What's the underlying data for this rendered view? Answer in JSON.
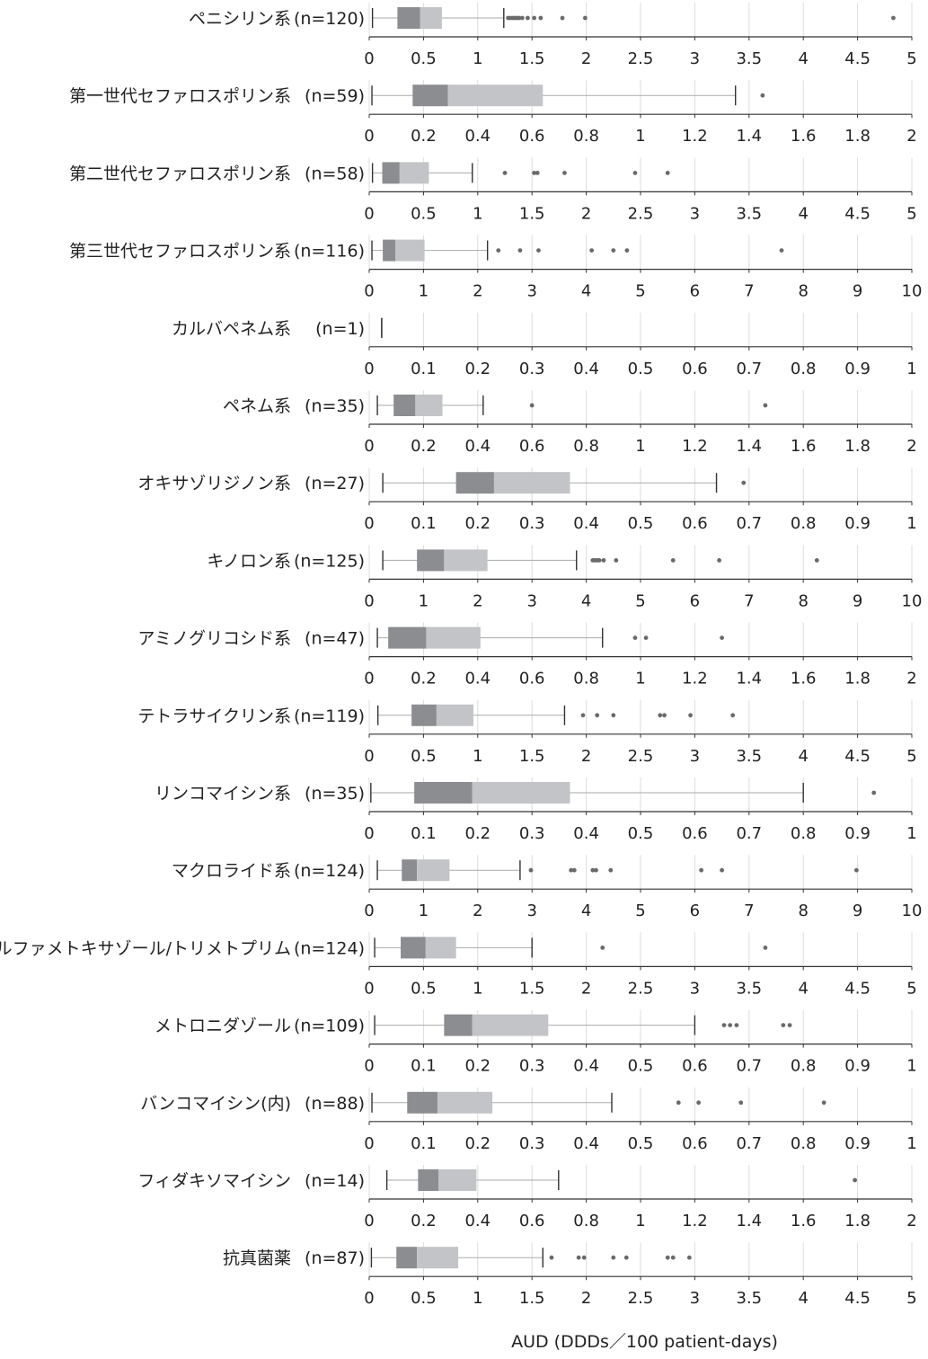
{
  "chart_data": {
    "type": "boxplot",
    "xlabel": "AUD (DDDs／100 patient-days)",
    "grid": true,
    "panels": [
      {
        "label": "ペニシリン系",
        "n": "(n=120)",
        "xlim": [
          0,
          5
        ],
        "ticks": [
          0,
          0.5,
          1,
          1.5,
          2,
          2.5,
          3,
          3.5,
          4,
          4.5,
          5
        ],
        "tick_labels": [
          "0",
          "0.5",
          "1",
          "1.5",
          "2",
          "2.5",
          "3",
          "3.5",
          "4",
          "4.5",
          "5"
        ],
        "min": 0.03,
        "q1": 0.26,
        "median": 0.47,
        "q3": 0.67,
        "max": 1.24,
        "outliers": [
          1.28,
          1.3,
          1.32,
          1.34,
          1.36,
          1.38,
          1.41,
          1.46,
          1.52,
          1.58,
          1.78,
          1.99,
          4.83
        ]
      },
      {
        "label": "第一世代セファロスポリン系",
        "n": "(n=59)",
        "xlim": [
          0,
          2
        ],
        "ticks": [
          0,
          0.2,
          0.4,
          0.6,
          0.8,
          1,
          1.2,
          1.4,
          1.6,
          1.8,
          2
        ],
        "tick_labels": [
          "0",
          "0.2",
          "0.4",
          "0.6",
          "0.8",
          "1",
          "1.2",
          "1.4",
          "1.6",
          "1.8",
          "2"
        ],
        "min": 0.01,
        "q1": 0.16,
        "median": 0.29,
        "q3": 0.64,
        "max": 1.35,
        "outliers": [
          1.45
        ]
      },
      {
        "label": "第二世代セファロスポリン系",
        "n": "(n=58)",
        "xlim": [
          0,
          5
        ],
        "ticks": [
          0,
          0.5,
          1,
          1.5,
          2,
          2.5,
          3,
          3.5,
          4,
          4.5,
          5
        ],
        "tick_labels": [
          "0",
          "0.5",
          "1",
          "1.5",
          "2",
          "2.5",
          "3",
          "3.5",
          "4",
          "4.5",
          "5"
        ],
        "min": 0.03,
        "q1": 0.12,
        "median": 0.28,
        "q3": 0.55,
        "max": 0.95,
        "outliers": [
          1.25,
          1.52,
          1.55,
          1.8,
          2.45,
          2.75
        ]
      },
      {
        "label": "第三世代セファロスポリン系",
        "n": "(n=116)",
        "xlim": [
          0,
          10
        ],
        "ticks": [
          0,
          1,
          2,
          3,
          4,
          5,
          6,
          7,
          8,
          9,
          10
        ],
        "tick_labels": [
          "0",
          "1",
          "2",
          "3",
          "4",
          "5",
          "6",
          "7",
          "8",
          "9",
          "10"
        ],
        "min": 0.05,
        "q1": 0.25,
        "median": 0.48,
        "q3": 1.02,
        "max": 2.18,
        "outliers": [
          2.38,
          2.78,
          3.12,
          4.1,
          4.5,
          4.75,
          7.6
        ]
      },
      {
        "label": "カルバペネム系",
        "n": "(n=1)",
        "xlim": [
          0,
          1
        ],
        "ticks": [
          0,
          0.1,
          0.2,
          0.3,
          0.4,
          0.5,
          0.6,
          0.7,
          0.8,
          0.9,
          1
        ],
        "tick_labels": [
          "0",
          "0.1",
          "0.2",
          "0.3",
          "0.4",
          "0.5",
          "0.6",
          "0.7",
          "0.8",
          "0.9",
          "1"
        ],
        "min": 0.023,
        "q1": 0.023,
        "median": 0.023,
        "q3": 0.023,
        "max": 0.023,
        "outliers": []
      },
      {
        "label": "ペネム系",
        "n": "(n=35)",
        "xlim": [
          0,
          2
        ],
        "ticks": [
          0,
          0.2,
          0.4,
          0.6,
          0.8,
          1,
          1.2,
          1.4,
          1.6,
          1.8,
          2
        ],
        "tick_labels": [
          "0",
          "0.2",
          "0.4",
          "0.6",
          "0.8",
          "1",
          "1.2",
          "1.4",
          "1.6",
          "1.8",
          "2"
        ],
        "min": 0.03,
        "q1": 0.09,
        "median": 0.17,
        "q3": 0.27,
        "max": 0.42,
        "outliers": [
          0.6,
          1.46
        ]
      },
      {
        "label": "オキサゾリジノン系",
        "n": "(n=27)",
        "xlim": [
          0,
          1
        ],
        "ticks": [
          0,
          0.1,
          0.2,
          0.3,
          0.4,
          0.5,
          0.6,
          0.7,
          0.8,
          0.9,
          1
        ],
        "tick_labels": [
          "0",
          "0.1",
          "0.2",
          "0.3",
          "0.4",
          "0.5",
          "0.6",
          "0.7",
          "0.8",
          "0.9",
          "1"
        ],
        "min": 0.025,
        "q1": 0.16,
        "median": 0.23,
        "q3": 0.37,
        "max": 0.64,
        "outliers": [
          0.69
        ]
      },
      {
        "label": "キノロン系",
        "n": "(n=125)",
        "xlim": [
          0,
          10
        ],
        "ticks": [
          0,
          1,
          2,
          3,
          4,
          5,
          6,
          7,
          8,
          9,
          10
        ],
        "tick_labels": [
          "0",
          "1",
          "2",
          "3",
          "4",
          "5",
          "6",
          "7",
          "8",
          "9",
          "10"
        ],
        "min": 0.25,
        "q1": 0.88,
        "median": 1.38,
        "q3": 2.18,
        "max": 3.82,
        "outliers": [
          4.12,
          4.16,
          4.2,
          4.24,
          4.32,
          4.55,
          5.6,
          6.45,
          8.25
        ]
      },
      {
        "label": "アミノグリコシド系",
        "n": "(n=47)",
        "xlim": [
          0,
          2
        ],
        "ticks": [
          0,
          0.2,
          0.4,
          0.6,
          0.8,
          1,
          1.2,
          1.4,
          1.6,
          1.8,
          2
        ],
        "tick_labels": [
          "0",
          "0.2",
          "0.4",
          "0.6",
          "0.8",
          "1",
          "1.2",
          "1.4",
          "1.6",
          "1.8",
          "2"
        ],
        "min": 0.03,
        "q1": 0.07,
        "median": 0.21,
        "q3": 0.41,
        "max": 0.86,
        "outliers": [
          0.98,
          1.02,
          1.3
        ]
      },
      {
        "label": "テトラサイクリン系",
        "n": "(n=119)",
        "xlim": [
          0,
          5
        ],
        "ticks": [
          0,
          0.5,
          1,
          1.5,
          2,
          2.5,
          3,
          3.5,
          4,
          4.5,
          5
        ],
        "tick_labels": [
          "0",
          "0.5",
          "1",
          "1.5",
          "2",
          "2.5",
          "3",
          "3.5",
          "4",
          "4.5",
          "5"
        ],
        "min": 0.08,
        "q1": 0.39,
        "median": 0.62,
        "q3": 0.96,
        "max": 1.8,
        "outliers": [
          1.97,
          2.1,
          2.25,
          2.68,
          2.72,
          2.96,
          3.35
        ]
      },
      {
        "label": "リンコマイシン系",
        "n": "(n=35)",
        "xlim": [
          0,
          1
        ],
        "ticks": [
          0,
          0.1,
          0.2,
          0.3,
          0.4,
          0.5,
          0.6,
          0.7,
          0.8,
          0.9,
          1
        ],
        "tick_labels": [
          "0",
          "0.1",
          "0.2",
          "0.3",
          "0.4",
          "0.5",
          "0.6",
          "0.7",
          "0.8",
          "0.9",
          "1"
        ],
        "min": 0.003,
        "q1": 0.083,
        "median": 0.19,
        "q3": 0.37,
        "max": 0.8,
        "outliers": [
          0.93
        ]
      },
      {
        "label": "マクロライド系",
        "n": "(n=124)",
        "xlim": [
          0,
          10
        ],
        "ticks": [
          0,
          1,
          2,
          3,
          4,
          5,
          6,
          7,
          8,
          9,
          10
        ],
        "tick_labels": [
          "0",
          "1",
          "2",
          "3",
          "4",
          "5",
          "6",
          "7",
          "8",
          "9",
          "10"
        ],
        "min": 0.15,
        "q1": 0.6,
        "median": 0.88,
        "q3": 1.48,
        "max": 2.78,
        "outliers": [
          2.98,
          3.72,
          3.78,
          4.12,
          4.18,
          4.45,
          6.12,
          6.5,
          8.98
        ]
      },
      {
        "label": "スルファメトキサゾール/トリメトプリム",
        "n": "(n=124)",
        "xlim": [
          0,
          5
        ],
        "ticks": [
          0,
          0.5,
          1,
          1.5,
          2,
          2.5,
          3,
          3.5,
          4,
          4.5,
          5
        ],
        "tick_labels": [
          "0",
          "0.5",
          "1",
          "1.5",
          "2",
          "2.5",
          "3",
          "3.5",
          "4",
          "4.5",
          "5"
        ],
        "min": 0.05,
        "q1": 0.29,
        "median": 0.52,
        "q3": 0.8,
        "max": 1.5,
        "outliers": [
          2.15,
          3.65
        ]
      },
      {
        "label": "メトロニダゾール",
        "n": "(n=109)",
        "xlim": [
          0,
          1
        ],
        "ticks": [
          0,
          0.1,
          0.2,
          0.3,
          0.4,
          0.5,
          0.6,
          0.7,
          0.8,
          0.9,
          1
        ],
        "tick_labels": [
          "0",
          "0.1",
          "0.2",
          "0.3",
          "0.4",
          "0.5",
          "0.6",
          "0.7",
          "0.8",
          "0.9",
          "1"
        ],
        "min": 0.01,
        "q1": 0.138,
        "median": 0.19,
        "q3": 0.33,
        "max": 0.6,
        "outliers": [
          0.654,
          0.665,
          0.677,
          0.763,
          0.775
        ]
      },
      {
        "label": "バンコマイシン(内)",
        "n": "(n=88)",
        "xlim": [
          0,
          1
        ],
        "ticks": [
          0,
          0.1,
          0.2,
          0.3,
          0.4,
          0.5,
          0.6,
          0.7,
          0.8,
          0.9,
          1
        ],
        "tick_labels": [
          "0",
          "0.1",
          "0.2",
          "0.3",
          "0.4",
          "0.5",
          "0.6",
          "0.7",
          "0.8",
          "0.9",
          "1"
        ],
        "min": 0.005,
        "q1": 0.07,
        "median": 0.126,
        "q3": 0.227,
        "max": 0.447,
        "outliers": [
          0.57,
          0.607,
          0.685,
          0.838
        ]
      },
      {
        "label": "フィダキソマイシン",
        "n": "(n=14)",
        "xlim": [
          0,
          2
        ],
        "ticks": [
          0,
          0.2,
          0.4,
          0.6,
          0.8,
          1,
          1.2,
          1.4,
          1.6,
          1.8,
          2
        ],
        "tick_labels": [
          "0",
          "0.2",
          "0.4",
          "0.6",
          "0.8",
          "1",
          "1.2",
          "1.4",
          "1.6",
          "1.8",
          "2"
        ],
        "min": 0.065,
        "q1": 0.18,
        "median": 0.255,
        "q3": 0.395,
        "max": 0.698,
        "outliers": [
          1.79
        ]
      },
      {
        "label": "抗真菌薬",
        "n": "(n=87)",
        "xlim": [
          0,
          5
        ],
        "ticks": [
          0,
          0.5,
          1,
          1.5,
          2,
          2.5,
          3,
          3.5,
          4,
          4.5,
          5
        ],
        "tick_labels": [
          "0",
          "0.5",
          "1",
          "1.5",
          "2",
          "2.5",
          "3",
          "3.5",
          "4",
          "4.5",
          "5"
        ],
        "min": 0.02,
        "q1": 0.25,
        "median": 0.44,
        "q3": 0.82,
        "max": 1.6,
        "outliers": [
          1.68,
          1.93,
          1.98,
          2.25,
          2.37,
          2.75,
          2.8,
          2.95
        ]
      }
    ]
  },
  "colors": {
    "q1_to_median": "#8c8d90",
    "median_to_q3": "#c3c4c7",
    "whisker": "#aaaaaa",
    "cap": "#333333",
    "outlier": "#6a6a6a",
    "axis": "#333333",
    "grid": "#dcdcdc",
    "text": "#222222"
  }
}
